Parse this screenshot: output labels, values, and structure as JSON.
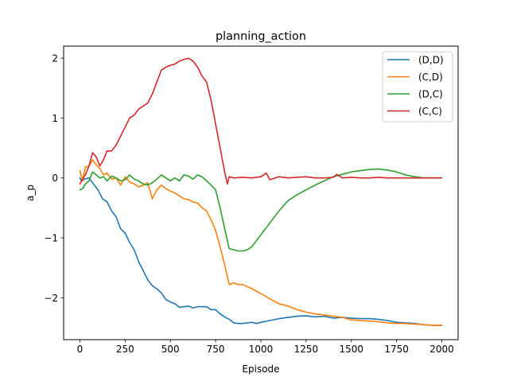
{
  "chart_data": {
    "type": "line",
    "title": "planning_action",
    "xlabel": "Episode",
    "ylabel": "a_p",
    "xlim": [
      -90,
      2090
    ],
    "ylim": [
      -2.7,
      2.2
    ],
    "xticks": [
      0,
      250,
      500,
      750,
      1000,
      1250,
      1500,
      1750,
      2000
    ],
    "xtick_labels": [
      "0",
      "250",
      "500",
      "750",
      "1000",
      "1250",
      "1500",
      "1750",
      "2000"
    ],
    "yticks": [
      -2,
      -1,
      0,
      1,
      2
    ],
    "ytick_labels": [
      "−2",
      "−1",
      "0",
      "1",
      "2"
    ],
    "grid": false,
    "legend_position": "top-right",
    "series": [
      {
        "name": "(D,D)",
        "color": "#1f77b4",
        "x": [
          0,
          10,
          25,
          50,
          75,
          100,
          125,
          150,
          175,
          200,
          225,
          250,
          275,
          300,
          325,
          350,
          375,
          400,
          425,
          450,
          475,
          500,
          525,
          550,
          575,
          600,
          625,
          650,
          675,
          700,
          725,
          750,
          775,
          800,
          825,
          850,
          875,
          900,
          925,
          950,
          975,
          1000,
          1050,
          1100,
          1150,
          1200,
          1250,
          1300,
          1350,
          1400,
          1450,
          1500,
          1550,
          1600,
          1650,
          1700,
          1750,
          1800,
          1850,
          1900,
          1950,
          2000
        ],
        "values": [
          0.0,
          -0.05,
          -0.02,
          0.0,
          -0.1,
          -0.2,
          -0.35,
          -0.4,
          -0.55,
          -0.65,
          -0.85,
          -0.92,
          -1.08,
          -1.2,
          -1.4,
          -1.55,
          -1.7,
          -1.8,
          -1.85,
          -1.92,
          -2.03,
          -2.07,
          -2.1,
          -2.16,
          -2.15,
          -2.14,
          -2.17,
          -2.15,
          -2.15,
          -2.15,
          -2.2,
          -2.2,
          -2.27,
          -2.32,
          -2.36,
          -2.42,
          -2.43,
          -2.43,
          -2.42,
          -2.41,
          -2.43,
          -2.41,
          -2.38,
          -2.35,
          -2.33,
          -2.31,
          -2.3,
          -2.32,
          -2.31,
          -2.34,
          -2.33,
          -2.34,
          -2.35,
          -2.35,
          -2.36,
          -2.38,
          -2.41,
          -2.42,
          -2.43,
          -2.45,
          -2.46,
          -2.46
        ]
      },
      {
        "name": "(C,D)",
        "color": "#ff7f0e",
        "x": [
          0,
          15,
          30,
          50,
          70,
          90,
          110,
          130,
          150,
          175,
          200,
          225,
          250,
          275,
          300,
          325,
          350,
          375,
          400,
          425,
          450,
          475,
          500,
          525,
          550,
          575,
          600,
          625,
          650,
          675,
          700,
          725,
          750,
          775,
          800,
          825,
          850,
          875,
          900,
          950,
          1000,
          1050,
          1100,
          1150,
          1200,
          1250,
          1300,
          1350,
          1400,
          1450,
          1500,
          1550,
          1600,
          1650,
          1700,
          1750,
          1800,
          1850,
          1900,
          1950,
          2000
        ],
        "values": [
          0.12,
          -0.05,
          0.18,
          0.2,
          0.3,
          0.22,
          0.16,
          0.05,
          0.08,
          -0.02,
          0.0,
          -0.12,
          0.02,
          -0.07,
          -0.1,
          -0.15,
          -0.12,
          -0.08,
          -0.35,
          -0.2,
          -0.12,
          -0.18,
          -0.22,
          -0.25,
          -0.3,
          -0.35,
          -0.36,
          -0.4,
          -0.42,
          -0.5,
          -0.55,
          -0.7,
          -0.88,
          -1.15,
          -1.45,
          -1.78,
          -1.75,
          -1.78,
          -1.78,
          -1.85,
          -1.93,
          -2.02,
          -2.1,
          -2.14,
          -2.2,
          -2.24,
          -2.27,
          -2.29,
          -2.31,
          -2.33,
          -2.37,
          -2.38,
          -2.39,
          -2.4,
          -2.42,
          -2.43,
          -2.43,
          -2.44,
          -2.45,
          -2.46,
          -2.46
        ]
      },
      {
        "name": "(D,C)",
        "color": "#2ca02c",
        "x": [
          0,
          15,
          30,
          50,
          70,
          90,
          110,
          130,
          150,
          175,
          200,
          225,
          250,
          275,
          300,
          325,
          350,
          375,
          400,
          425,
          450,
          475,
          500,
          525,
          550,
          575,
          600,
          625,
          650,
          675,
          700,
          725,
          750,
          775,
          800,
          825,
          850,
          875,
          900,
          925,
          950,
          975,
          1000,
          1050,
          1100,
          1150,
          1200,
          1250,
          1300,
          1350,
          1400,
          1450,
          1500,
          1550,
          1600,
          1650,
          1700,
          1750,
          1800,
          1850,
          1900,
          1950,
          2000
        ],
        "values": [
          -0.2,
          -0.18,
          -0.1,
          -0.05,
          0.1,
          0.05,
          0.0,
          0.02,
          -0.05,
          0.03,
          0.0,
          -0.05,
          -0.03,
          0.05,
          -0.02,
          -0.05,
          -0.1,
          -0.12,
          -0.08,
          -0.02,
          0.05,
          0.0,
          -0.05,
          0.0,
          -0.05,
          0.05,
          0.03,
          -0.02,
          0.05,
          0.02,
          -0.05,
          -0.12,
          -0.2,
          -0.5,
          -0.85,
          -1.18,
          -1.2,
          -1.22,
          -1.22,
          -1.2,
          -1.15,
          -1.05,
          -0.95,
          -0.75,
          -0.55,
          -0.38,
          -0.28,
          -0.2,
          -0.12,
          -0.05,
          0.02,
          0.06,
          0.1,
          0.12,
          0.14,
          0.15,
          0.13,
          0.1,
          0.05,
          0.02,
          0.0,
          0.0,
          0.0
        ]
      },
      {
        "name": "(C,C)",
        "color": "#d62728",
        "x": [
          0,
          15,
          30,
          50,
          70,
          90,
          110,
          130,
          150,
          175,
          200,
          225,
          250,
          275,
          300,
          325,
          350,
          375,
          400,
          425,
          450,
          475,
          500,
          525,
          550,
          575,
          600,
          625,
          650,
          675,
          700,
          725,
          750,
          775,
          800,
          815,
          825,
          850,
          900,
          950,
          1000,
          1030,
          1050,
          1100,
          1150,
          1200,
          1250,
          1300,
          1350,
          1400,
          1420,
          1450,
          1500,
          1550,
          1600,
          1650,
          1700,
          1750,
          1800,
          1850,
          1900,
          1950,
          2000
        ],
        "values": [
          -0.1,
          -0.02,
          0.05,
          0.2,
          0.42,
          0.35,
          0.2,
          0.3,
          0.45,
          0.45,
          0.55,
          0.7,
          0.85,
          1.0,
          1.05,
          1.15,
          1.2,
          1.25,
          1.4,
          1.6,
          1.8,
          1.85,
          1.88,
          1.9,
          1.95,
          1.98,
          2.0,
          1.95,
          1.85,
          1.7,
          1.6,
          1.3,
          0.9,
          0.5,
          0.1,
          -0.1,
          0.02,
          0.0,
          0.01,
          0.0,
          0.02,
          0.08,
          -0.03,
          0.02,
          0.0,
          0.01,
          0.02,
          0.0,
          0.0,
          0.01,
          0.06,
          0.0,
          0.01,
          0.0,
          0.0,
          0.01,
          0.0,
          0.0,
          0.0,
          0.0,
          0.0,
          0.0,
          0.0
        ]
      }
    ]
  }
}
